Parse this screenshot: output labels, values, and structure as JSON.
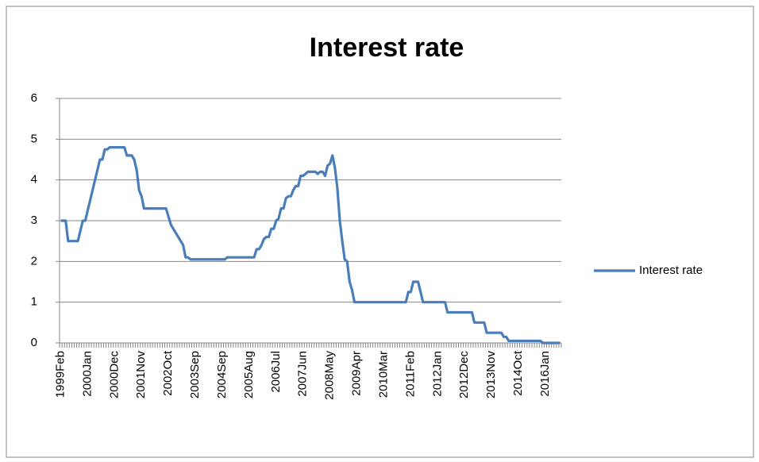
{
  "chart_data": {
    "type": "line",
    "title": "Interest rate",
    "categories": [
      "1999Feb",
      null,
      null,
      null,
      null,
      null,
      null,
      null,
      null,
      null,
      null,
      "2000Jan",
      null,
      null,
      null,
      null,
      null,
      null,
      null,
      null,
      null,
      null,
      "2000Dec",
      null,
      null,
      null,
      null,
      null,
      null,
      null,
      null,
      null,
      null,
      "2001Nov",
      null,
      null,
      null,
      null,
      null,
      null,
      null,
      null,
      null,
      null,
      "2002Oct",
      null,
      null,
      null,
      null,
      null,
      null,
      null,
      null,
      null,
      null,
      "2003Sep",
      null,
      null,
      null,
      null,
      null,
      null,
      null,
      null,
      null,
      null,
      "2004Sep",
      null,
      null,
      null,
      null,
      null,
      null,
      null,
      null,
      null,
      null,
      "2005Aug",
      null,
      null,
      null,
      null,
      null,
      null,
      null,
      null,
      null,
      null,
      "2006Jul",
      null,
      null,
      null,
      null,
      null,
      null,
      null,
      null,
      null,
      null,
      "2007Jun",
      null,
      null,
      null,
      null,
      null,
      null,
      null,
      null,
      null,
      null,
      "2008May",
      null,
      null,
      null,
      null,
      null,
      null,
      null,
      null,
      null,
      null,
      "2009Apr",
      null,
      null,
      null,
      null,
      null,
      null,
      null,
      null,
      null,
      null,
      "2010Mar",
      null,
      null,
      null,
      null,
      null,
      null,
      null,
      null,
      null,
      null,
      "2011Feb",
      null,
      null,
      null,
      null,
      null,
      null,
      null,
      null,
      null,
      null,
      "2012Jan",
      null,
      null,
      null,
      null,
      null,
      null,
      null,
      null,
      null,
      null,
      "2012Dec",
      null,
      null,
      null,
      null,
      null,
      null,
      null,
      null,
      null,
      null,
      "2013Nov",
      null,
      null,
      null,
      null,
      null,
      null,
      null,
      null,
      null,
      null,
      "2014Oct",
      null,
      null,
      null,
      null,
      null,
      null,
      null,
      null,
      null,
      null,
      "2016Jan",
      null,
      null,
      null,
      null,
      null,
      null
    ],
    "series": [
      {
        "name": "Interest rate",
        "color": "#4a7ebb",
        "values": [
          3,
          3,
          3,
          2.5,
          2.5,
          2.5,
          2.5,
          2.5,
          2.75,
          3,
          3,
          3.25,
          3.5,
          3.75,
          4,
          4.25,
          4.5,
          4.5,
          4.75,
          4.75,
          4.8,
          4.8,
          4.8,
          4.8,
          4.8,
          4.8,
          4.8,
          4.6,
          4.6,
          4.6,
          4.5,
          4.25,
          3.75,
          3.6,
          3.3,
          3.3,
          3.3,
          3.3,
          3.3,
          3.3,
          3.3,
          3.3,
          3.3,
          3.3,
          3.1,
          2.9,
          2.8,
          2.7,
          2.6,
          2.5,
          2.4,
          2.1,
          2.1,
          2.05,
          2.05,
          2.05,
          2.05,
          2.05,
          2.05,
          2.05,
          2.05,
          2.05,
          2.05,
          2.05,
          2.05,
          2.05,
          2.05,
          2.05,
          2.1,
          2.1,
          2.1,
          2.1,
          2.1,
          2.1,
          2.1,
          2.1,
          2.1,
          2.1,
          2.1,
          2.1,
          2.3,
          2.3,
          2.4,
          2.55,
          2.6,
          2.6,
          2.8,
          2.8,
          3,
          3.05,
          3.3,
          3.3,
          3.55,
          3.6,
          3.6,
          3.75,
          3.85,
          3.85,
          4.1,
          4.1,
          4.15,
          4.2,
          4.2,
          4.2,
          4.2,
          4.15,
          4.2,
          4.2,
          4.1,
          4.35,
          4.4,
          4.6,
          4.3,
          3.8,
          3,
          2.5,
          2.05,
          2,
          1.5,
          1.3,
          1,
          1,
          1,
          1,
          1,
          1,
          1,
          1,
          1,
          1,
          1,
          1,
          1,
          1,
          1,
          1,
          1,
          1,
          1,
          1,
          1,
          1,
          1.25,
          1.25,
          1.5,
          1.5,
          1.5,
          1.25,
          1,
          1,
          1,
          1,
          1,
          1,
          1,
          1,
          1,
          1,
          0.75,
          0.75,
          0.75,
          0.75,
          0.75,
          0.75,
          0.75,
          0.75,
          0.75,
          0.75,
          0.75,
          0.5,
          0.5,
          0.5,
          0.5,
          0.5,
          0.25,
          0.25,
          0.25,
          0.25,
          0.25,
          0.25,
          0.25,
          0.15,
          0.15,
          0.05,
          0.05,
          0.05,
          0.05,
          0.05,
          0.05,
          0.05,
          0.05,
          0.05,
          0.05,
          0.05,
          0.05,
          0.05,
          0.05,
          0,
          0,
          0,
          0,
          0,
          0,
          0,
          0
        ]
      }
    ],
    "ylim": [
      0,
      6
    ],
    "yticks": [
      0,
      1,
      2,
      3,
      4,
      5,
      6
    ],
    "grid": true,
    "legend": "right"
  }
}
